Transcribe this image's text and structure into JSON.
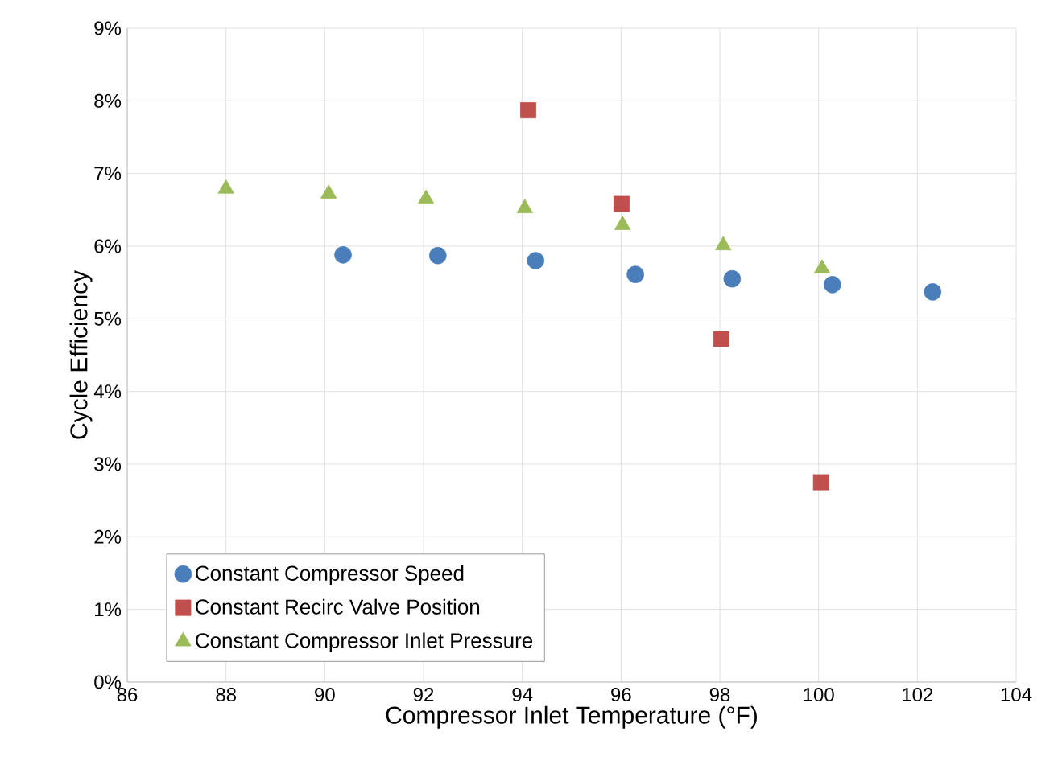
{
  "chart_data": {
    "type": "scatter",
    "xlabel": "Compressor Inlet Temperature (°F)",
    "ylabel": "Cycle Efficiency",
    "xlim": [
      86,
      104
    ],
    "xticks": [
      86,
      88,
      90,
      92,
      94,
      96,
      98,
      100,
      102,
      104
    ],
    "ylim": [
      0,
      9
    ],
    "yticks": [
      {
        "value": 0,
        "label": "0%"
      },
      {
        "value": 1,
        "label": "1%"
      },
      {
        "value": 2,
        "label": "2%"
      },
      {
        "value": 3,
        "label": "3%"
      },
      {
        "value": 4,
        "label": "4%"
      },
      {
        "value": 5,
        "label": "5%"
      },
      {
        "value": 6,
        "label": "6%"
      },
      {
        "value": 7,
        "label": "7%"
      },
      {
        "value": 8,
        "label": "8%"
      },
      {
        "value": 9,
        "label": "9%"
      }
    ],
    "grid": true,
    "legend": "bottom left",
    "series": [
      {
        "name": "Constant Compressor Speed",
        "color": "#4a7ebb",
        "marker": "circle",
        "x": [
          90.37,
          92.29,
          94.27,
          96.29,
          98.25,
          100.28,
          102.31
        ],
        "values": [
          5.88,
          5.87,
          5.8,
          5.61,
          5.55,
          5.47,
          5.37
        ]
      },
      {
        "name": "Constant Recirc Valve Position",
        "color": "#c0504d",
        "marker": "square",
        "x": [
          94.12,
          96.01,
          98.03,
          100.05
        ],
        "values": [
          7.87,
          6.58,
          4.72,
          2.75
        ]
      },
      {
        "name": "Constant Compressor Inlet Pressure",
        "color": "#9bbb59",
        "marker": "triangle",
        "x": [
          88.0,
          90.08,
          92.05,
          94.05,
          96.03,
          98.07,
          100.07
        ],
        "values": [
          6.79,
          6.72,
          6.65,
          6.52,
          6.29,
          6.01,
          5.69
        ]
      }
    ]
  }
}
